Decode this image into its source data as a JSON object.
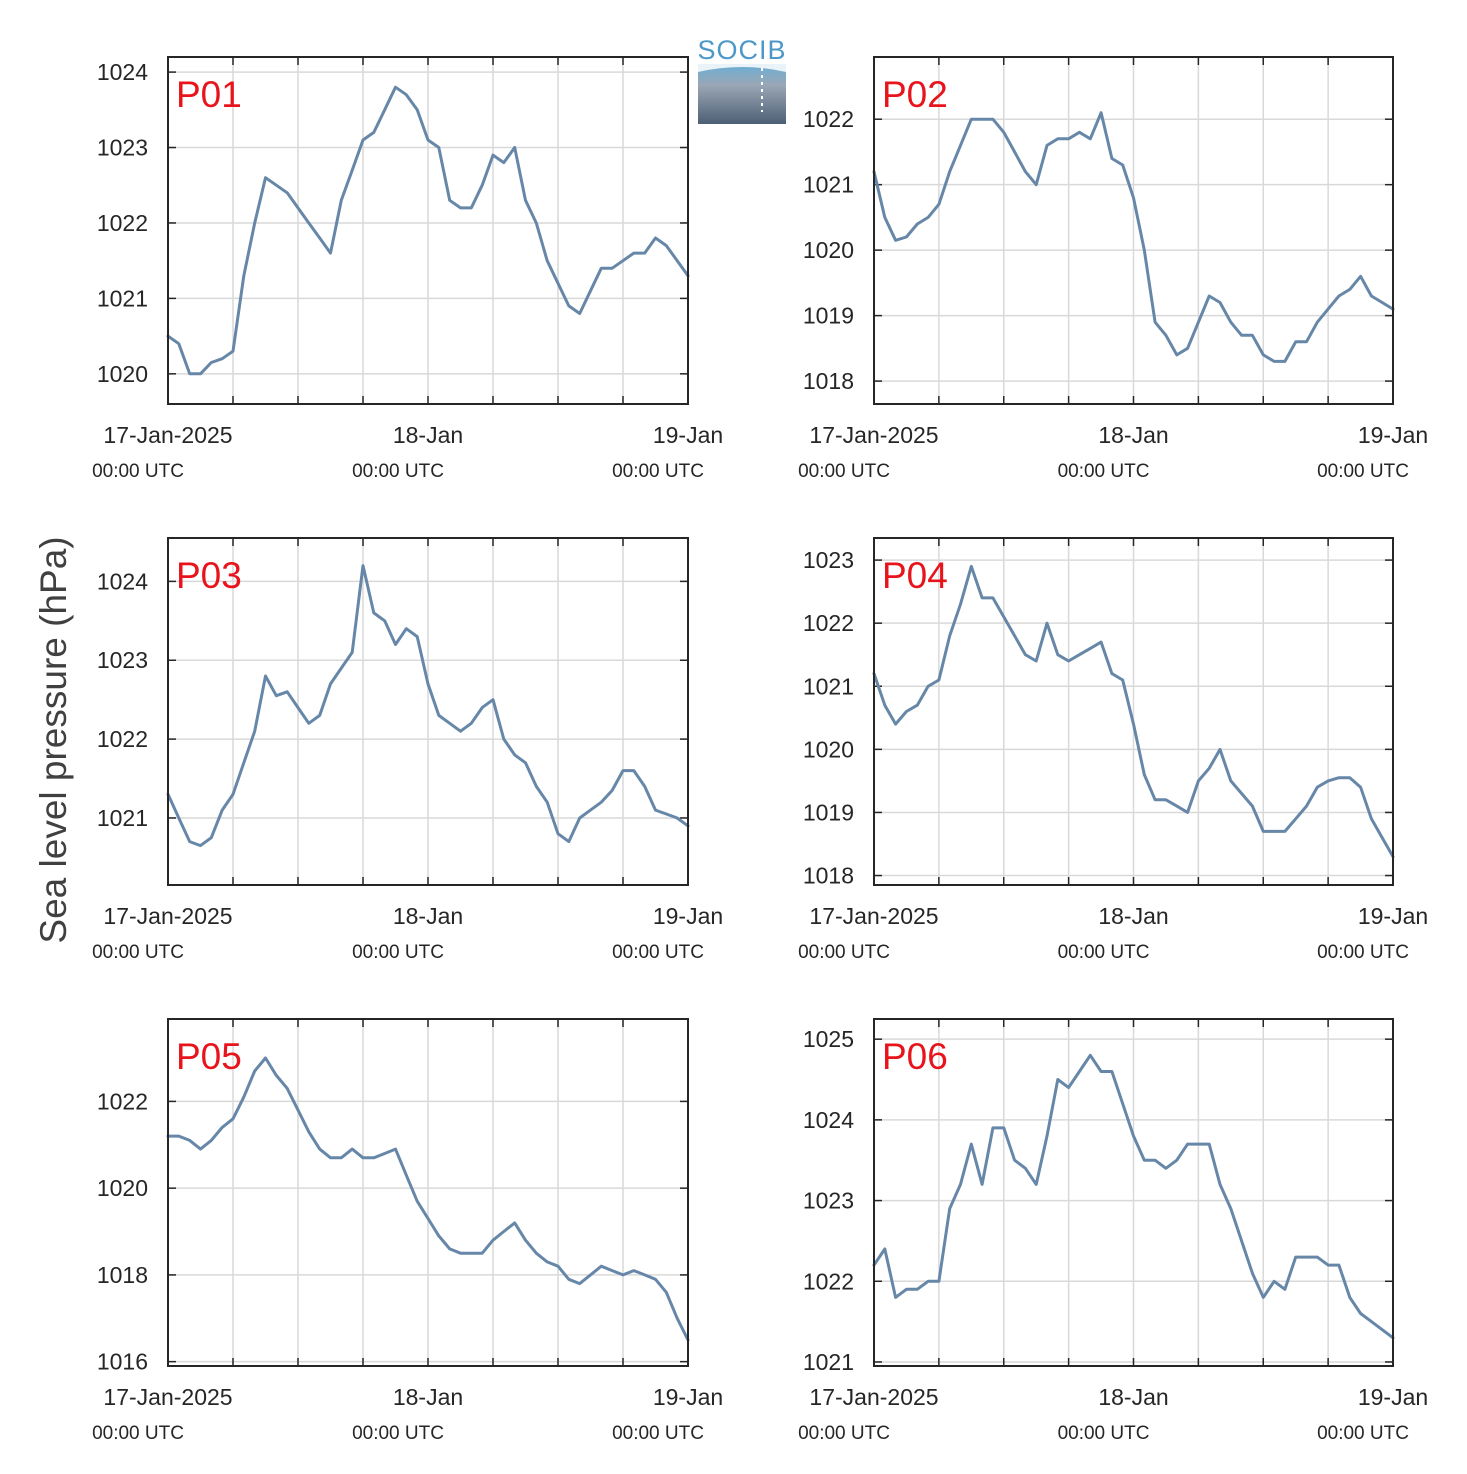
{
  "logo": {
    "text": "SOCIB",
    "color": "#4d97c9"
  },
  "colors": {
    "line": "#6787a8",
    "title": "#e8141c",
    "axis": "#262626",
    "grid": "#d9d9d9"
  },
  "chart_data": [
    {
      "type": "line",
      "title": "P01",
      "ylabel": "Sea level pressure (hPa)",
      "ylim": [
        1019.6,
        1024.2
      ],
      "yticks": [
        1020,
        1021,
        1022,
        1023,
        1024
      ],
      "xlim": [
        "2025-01-17 00:00",
        "2025-01-19 00:00"
      ],
      "xtick_labels": [
        {
          "date": "17-Jan-2025",
          "time": "00:00 UTC"
        },
        {
          "date": "18-Jan",
          "time": "00:00 UTC"
        },
        {
          "date": "19-Jan",
          "time": "00:00 UTC"
        }
      ],
      "grid": true,
      "series": [
        {
          "x_hours": [
            0,
            1,
            2,
            3,
            4,
            5,
            6,
            7,
            8,
            9,
            10,
            11,
            12,
            13,
            14,
            15,
            16,
            17,
            18,
            19,
            20,
            21,
            22,
            23,
            24,
            25,
            26,
            27,
            28,
            29,
            30,
            31,
            32,
            33,
            34,
            35,
            36,
            37,
            38,
            39,
            40,
            41,
            42,
            43,
            44,
            45,
            46,
            47,
            48
          ],
          "values": [
            1020.5,
            1020.4,
            1020.0,
            1020.0,
            1020.15,
            1020.2,
            1020.3,
            1021.3,
            1022.0,
            1022.6,
            1022.5,
            1022.4,
            1022.2,
            1022.0,
            1021.8,
            1021.6,
            1022.3,
            1022.7,
            1023.1,
            1023.2,
            1023.5,
            1023.8,
            1023.7,
            1023.5,
            1023.1,
            1023.0,
            1022.3,
            1022.2,
            1022.2,
            1022.5,
            1022.9,
            1022.8,
            1023.0,
            1022.3,
            1022.0,
            1021.5,
            1021.2,
            1020.9,
            1020.8,
            1021.1,
            1021.4,
            1021.4,
            1021.5,
            1021.6,
            1021.6,
            1021.8,
            1021.7,
            1021.5,
            1021.3
          ]
        }
      ]
    },
    {
      "type": "line",
      "title": "P02",
      "ylim": [
        1017.65,
        1022.95
      ],
      "yticks": [
        1018,
        1019,
        1020,
        1021,
        1022
      ],
      "xlim": [
        "2025-01-17 00:00",
        "2025-01-19 00:00"
      ],
      "xtick_labels": [
        {
          "date": "17-Jan-2025",
          "time": "00:00 UTC"
        },
        {
          "date": "18-Jan",
          "time": "00:00 UTC"
        },
        {
          "date": "19-Jan",
          "time": "00:00 UTC"
        }
      ],
      "grid": true,
      "series": [
        {
          "x_hours": [
            0,
            1,
            2,
            3,
            4,
            5,
            6,
            7,
            8,
            9,
            10,
            11,
            12,
            13,
            14,
            15,
            16,
            17,
            18,
            19,
            20,
            21,
            22,
            23,
            24,
            25,
            26,
            27,
            28,
            29,
            30,
            31,
            32,
            33,
            34,
            35,
            36,
            37,
            38,
            39,
            40,
            41,
            42,
            43,
            44,
            45,
            46,
            47,
            48
          ],
          "values": [
            1021.2,
            1020.5,
            1020.15,
            1020.2,
            1020.4,
            1020.5,
            1020.7,
            1021.2,
            1021.6,
            1022.0,
            1022.0,
            1022.0,
            1021.8,
            1021.5,
            1021.2,
            1021.0,
            1021.6,
            1021.7,
            1021.7,
            1021.8,
            1021.7,
            1022.1,
            1021.4,
            1021.3,
            1020.8,
            1020.0,
            1018.9,
            1018.7,
            1018.4,
            1018.5,
            1018.9,
            1019.3,
            1019.2,
            1018.9,
            1018.7,
            1018.7,
            1018.4,
            1018.3,
            1018.3,
            1018.6,
            1018.6,
            1018.9,
            1019.1,
            1019.3,
            1019.4,
            1019.6,
            1019.3,
            1019.2,
            1019.1
          ]
        }
      ]
    },
    {
      "type": "line",
      "title": "P03",
      "ylim": [
        1020.15,
        1024.55
      ],
      "yticks": [
        1021,
        1022,
        1023,
        1024
      ],
      "xlim": [
        "2025-01-17 00:00",
        "2025-01-19 00:00"
      ],
      "xtick_labels": [
        {
          "date": "17-Jan-2025",
          "time": "00:00 UTC"
        },
        {
          "date": "18-Jan",
          "time": "00:00 UTC"
        },
        {
          "date": "19-Jan",
          "time": "00:00 UTC"
        }
      ],
      "grid": true,
      "series": [
        {
          "x_hours": [
            0,
            1,
            2,
            3,
            4,
            5,
            6,
            7,
            8,
            9,
            10,
            11,
            12,
            13,
            14,
            15,
            16,
            17,
            18,
            19,
            20,
            21,
            22,
            23,
            24,
            25,
            26,
            27,
            28,
            29,
            30,
            31,
            32,
            33,
            34,
            35,
            36,
            37,
            38,
            39,
            40,
            41,
            42,
            43,
            44,
            45,
            46,
            47,
            48
          ],
          "values": [
            1021.3,
            1021.0,
            1020.7,
            1020.65,
            1020.75,
            1021.1,
            1021.3,
            1021.7,
            1022.1,
            1022.8,
            1022.55,
            1022.6,
            1022.4,
            1022.2,
            1022.3,
            1022.7,
            1022.9,
            1023.1,
            1024.2,
            1023.6,
            1023.5,
            1023.2,
            1023.4,
            1023.3,
            1022.7,
            1022.3,
            1022.2,
            1022.1,
            1022.2,
            1022.4,
            1022.5,
            1022.0,
            1021.8,
            1021.7,
            1021.4,
            1021.2,
            1020.8,
            1020.7,
            1021.0,
            1021.1,
            1021.2,
            1021.35,
            1021.6,
            1021.6,
            1021.4,
            1021.1,
            1021.05,
            1021.0,
            1020.9
          ]
        }
      ]
    },
    {
      "type": "line",
      "title": "P04",
      "ylim": [
        1017.85,
        1023.35
      ],
      "yticks": [
        1018,
        1019,
        1020,
        1021,
        1022,
        1023
      ],
      "xlim": [
        "2025-01-17 00:00",
        "2025-01-19 00:00"
      ],
      "xtick_labels": [
        {
          "date": "17-Jan-2025",
          "time": "00:00 UTC"
        },
        {
          "date": "18-Jan",
          "time": "00:00 UTC"
        },
        {
          "date": "19-Jan",
          "time": "00:00 UTC"
        }
      ],
      "grid": true,
      "series": [
        {
          "x_hours": [
            0,
            1,
            2,
            3,
            4,
            5,
            6,
            7,
            8,
            9,
            10,
            11,
            12,
            13,
            14,
            15,
            16,
            17,
            18,
            19,
            20,
            21,
            22,
            23,
            24,
            25,
            26,
            27,
            28,
            29,
            30,
            31,
            32,
            33,
            34,
            35,
            36,
            37,
            38,
            39,
            40,
            41,
            42,
            43,
            44,
            45,
            46,
            47,
            48
          ],
          "values": [
            1021.2,
            1020.7,
            1020.4,
            1020.6,
            1020.7,
            1021.0,
            1021.1,
            1021.8,
            1022.3,
            1022.9,
            1022.4,
            1022.4,
            1022.1,
            1021.8,
            1021.5,
            1021.4,
            1022.0,
            1021.5,
            1021.4,
            1021.5,
            1021.6,
            1021.7,
            1021.2,
            1021.1,
            1020.4,
            1019.6,
            1019.2,
            1019.2,
            1019.1,
            1019.0,
            1019.5,
            1019.7,
            1020.0,
            1019.5,
            1019.3,
            1019.1,
            1018.7,
            1018.7,
            1018.7,
            1018.9,
            1019.1,
            1019.4,
            1019.5,
            1019.55,
            1019.55,
            1019.4,
            1018.9,
            1018.6,
            1018.3
          ]
        }
      ]
    },
    {
      "type": "line",
      "title": "P05",
      "ylim": [
        1015.9,
        1023.9
      ],
      "yticks": [
        1016,
        1018,
        1020,
        1022
      ],
      "xlim": [
        "2025-01-17 00:00",
        "2025-01-19 00:00"
      ],
      "xtick_labels": [
        {
          "date": "17-Jan-2025",
          "time": "00:00 UTC"
        },
        {
          "date": "18-Jan",
          "time": "00:00 UTC"
        },
        {
          "date": "19-Jan",
          "time": "00:00 UTC"
        }
      ],
      "grid": true,
      "series": [
        {
          "x_hours": [
            0,
            1,
            2,
            3,
            4,
            5,
            6,
            7,
            8,
            9,
            10,
            11,
            12,
            13,
            14,
            15,
            16,
            17,
            18,
            19,
            20,
            21,
            22,
            23,
            24,
            25,
            26,
            27,
            28,
            29,
            30,
            31,
            32,
            33,
            34,
            35,
            36,
            37,
            38,
            39,
            40,
            41,
            42,
            43,
            44,
            45,
            46,
            47,
            48
          ],
          "values": [
            1021.2,
            1021.2,
            1021.1,
            1020.9,
            1021.1,
            1021.4,
            1021.6,
            1022.1,
            1022.7,
            1023.0,
            1022.6,
            1022.3,
            1021.8,
            1021.3,
            1020.9,
            1020.7,
            1020.7,
            1020.9,
            1020.7,
            1020.7,
            1020.8,
            1020.9,
            1020.3,
            1019.7,
            1019.3,
            1018.9,
            1018.6,
            1018.5,
            1018.5,
            1018.5,
            1018.8,
            1019.0,
            1019.2,
            1018.8,
            1018.5,
            1018.3,
            1018.2,
            1017.9,
            1017.8,
            1018.0,
            1018.2,
            1018.1,
            1018.0,
            1018.1,
            1018.0,
            1017.9,
            1017.6,
            1017.0,
            1016.5
          ]
        }
      ]
    },
    {
      "type": "line",
      "title": "P06",
      "ylim": [
        1020.95,
        1025.25
      ],
      "yticks": [
        1021,
        1022,
        1023,
        1024,
        1025
      ],
      "xlim": [
        "2025-01-17 00:00",
        "2025-01-19 00:00"
      ],
      "xtick_labels": [
        {
          "date": "17-Jan-2025",
          "time": "00:00 UTC"
        },
        {
          "date": "18-Jan",
          "time": "00:00 UTC"
        },
        {
          "date": "19-Jan",
          "time": "00:00 UTC"
        }
      ],
      "grid": true,
      "series": [
        {
          "x_hours": [
            0,
            1,
            2,
            3,
            4,
            5,
            6,
            7,
            8,
            9,
            10,
            11,
            12,
            13,
            14,
            15,
            16,
            17,
            18,
            19,
            20,
            21,
            22,
            23,
            24,
            25,
            26,
            27,
            28,
            29,
            30,
            31,
            32,
            33,
            34,
            35,
            36,
            37,
            38,
            39,
            40,
            41,
            42,
            43,
            44,
            45,
            46,
            47,
            48
          ],
          "values": [
            1022.2,
            1022.4,
            1021.8,
            1021.9,
            1021.9,
            1022.0,
            1022.0,
            1022.9,
            1023.2,
            1023.7,
            1023.2,
            1023.9,
            1023.9,
            1023.5,
            1023.4,
            1023.2,
            1023.8,
            1024.5,
            1024.4,
            1024.6,
            1024.8,
            1024.6,
            1024.6,
            1024.2,
            1023.8,
            1023.5,
            1023.5,
            1023.4,
            1023.5,
            1023.7,
            1023.7,
            1023.7,
            1023.2,
            1022.9,
            1022.5,
            1022.1,
            1021.8,
            1022.0,
            1021.9,
            1022.3,
            1022.3,
            1022.3,
            1022.2,
            1022.2,
            1021.8,
            1021.6,
            1021.5,
            1021.4,
            1021.3
          ]
        }
      ]
    }
  ]
}
